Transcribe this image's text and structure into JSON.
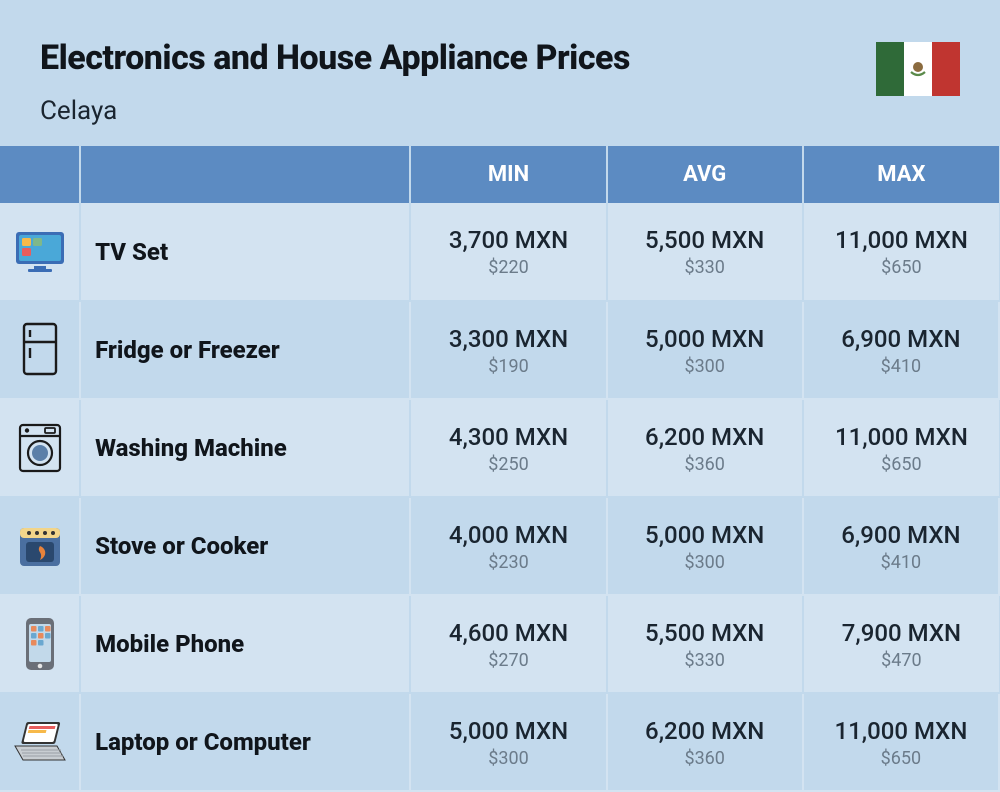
{
  "header": {
    "title": "Electronics and House Appliance Prices",
    "subtitle": "Celaya",
    "flag": {
      "green": "#2f6a38",
      "white": "#ffffff",
      "red": "#c03530",
      "emblem_brown": "#8b6b3f",
      "emblem_green": "#5a8a4a"
    }
  },
  "columns": {
    "min": "MIN",
    "avg": "AVG",
    "max": "MAX"
  },
  "rows": [
    {
      "icon": "tv",
      "name": "TV Set",
      "min_mxn": "3,700 MXN",
      "min_usd": "$220",
      "avg_mxn": "5,500 MXN",
      "avg_usd": "$330",
      "max_mxn": "11,000 MXN",
      "max_usd": "$650"
    },
    {
      "icon": "fridge",
      "name": "Fridge or Freezer",
      "min_mxn": "3,300 MXN",
      "min_usd": "$190",
      "avg_mxn": "5,000 MXN",
      "avg_usd": "$300",
      "max_mxn": "6,900 MXN",
      "max_usd": "$410"
    },
    {
      "icon": "washer",
      "name": "Washing Machine",
      "min_mxn": "4,300 MXN",
      "min_usd": "$250",
      "avg_mxn": "6,200 MXN",
      "avg_usd": "$360",
      "max_mxn": "11,000 MXN",
      "max_usd": "$650"
    },
    {
      "icon": "stove",
      "name": "Stove or Cooker",
      "min_mxn": "4,000 MXN",
      "min_usd": "$230",
      "avg_mxn": "5,000 MXN",
      "avg_usd": "$300",
      "max_mxn": "6,900 MXN",
      "max_usd": "$410"
    },
    {
      "icon": "phone",
      "name": "Mobile Phone",
      "min_mxn": "4,600 MXN",
      "min_usd": "$270",
      "avg_mxn": "5,500 MXN",
      "avg_usd": "$330",
      "max_mxn": "7,900 MXN",
      "max_usd": "$470"
    },
    {
      "icon": "laptop",
      "name": "Laptop or Computer",
      "min_mxn": "5,000 MXN",
      "min_usd": "$300",
      "avg_mxn": "6,200 MXN",
      "avg_usd": "$360",
      "max_mxn": "11,000 MXN",
      "max_usd": "$650"
    }
  ],
  "style": {
    "page_bg": "#c2d9ec",
    "row_odd_bg": "#d3e3f1",
    "row_even_bg": "#c2d9ec",
    "header_row_bg": "#5c8bc2",
    "header_row_fg": "#ffffff",
    "title_color": "#10151b",
    "mxn_color": "#1a2530",
    "usd_color": "#6b7b8a",
    "title_fontsize": 34,
    "subtitle_fontsize": 26,
    "colhdr_fontsize": 22,
    "name_fontsize": 24,
    "mxn_fontsize": 24,
    "usd_fontsize": 18,
    "icon_colors": {
      "tv_body": "#3b6db5",
      "tv_screen": "#4aa8d8",
      "tv_tile1": "#f7b94a",
      "tv_tile2": "#e85d5d",
      "tv_tile3": "#7fb88a",
      "fridge_stroke": "#1a1a1a",
      "washer_stroke": "#1a1a1a",
      "washer_drum": "#5b7fa8",
      "stove_body": "#4a6fa0",
      "stove_panel": "#f2d58a",
      "stove_flame": "#e8833b",
      "phone_body": "#6a6f78",
      "phone_screen": "#c2d9ea",
      "phone_tile1": "#e88a5c",
      "phone_tile2": "#6aa8d0",
      "laptop_body": "#333333",
      "laptop_screen": "#ffffff",
      "laptop_bar1": "#e85d5d",
      "laptop_bar2": "#f7b94a",
      "laptop_kbd": "#c8cdd2"
    }
  }
}
